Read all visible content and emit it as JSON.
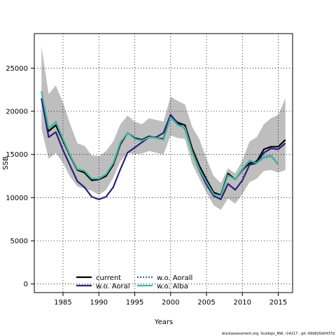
{
  "chart_data": {
    "type": "line",
    "xlabel": "Years",
    "ylabel": "SSB",
    "xlim": [
      1981,
      2017
    ],
    "ylim": [
      -1000,
      29000
    ],
    "x_ticks": [
      1985,
      1990,
      1995,
      2000,
      2005,
      2010,
      2015
    ],
    "y_ticks": [
      0,
      5000,
      10000,
      15000,
      20000,
      25000
    ],
    "grid": true,
    "legend_position": "bottom-left",
    "x": [
      1982,
      1983,
      1984,
      1985,
      1986,
      1987,
      1988,
      1989,
      1990,
      1991,
      1992,
      1993,
      1994,
      1995,
      1996,
      1997,
      1998,
      1999,
      2000,
      2001,
      2002,
      2003,
      2004,
      2005,
      2006,
      2007,
      2008,
      2009,
      2010,
      2011,
      2012,
      2013,
      2014,
      2015,
      2016
    ],
    "confidence_band": {
      "color": "#bebebe",
      "upper": [
        27500,
        22000,
        23000,
        21000,
        18500,
        16300,
        16000,
        14900,
        14800,
        15400,
        16500,
        18500,
        19500,
        18800,
        18500,
        19200,
        19000,
        18800,
        21700,
        21200,
        20800,
        18200,
        16800,
        14500,
        12500,
        11700,
        13400,
        12800,
        14300,
        16500,
        17000,
        18500,
        19200,
        19600,
        21500
      ],
      "lower": [
        18000,
        14500,
        15200,
        14000,
        12400,
        11300,
        11000,
        10800,
        10300,
        10900,
        12300,
        14200,
        15200,
        15000,
        15100,
        15400,
        15200,
        15000,
        17200,
        16900,
        16800,
        13900,
        12200,
        10600,
        9100,
        8600,
        9900,
        9300,
        10400,
        11800,
        12200,
        13100,
        13200,
        12900,
        13200
      ]
    },
    "series": [
      {
        "name": "current",
        "color": "#000000",
        "style": "solid",
        "width": 2.2,
        "values": [
          21500,
          17700,
          18400,
          16600,
          14800,
          13200,
          12900,
          12000,
          12100,
          12500,
          13800,
          16200,
          17500,
          16900,
          16700,
          17100,
          16900,
          16800,
          19400,
          18700,
          18400,
          15700,
          13700,
          12100,
          10600,
          10300,
          12800,
          12100,
          13200,
          14000,
          14200,
          15600,
          15900,
          15900,
          16700
        ]
      },
      {
        "name": "w.o. Aoral",
        "color": "#2e1e7c",
        "style": "solid",
        "width": 2.2,
        "values": [
          21500,
          17000,
          17600,
          15500,
          13700,
          11900,
          11200,
          10100,
          9800,
          10100,
          11200,
          13300,
          15200,
          15800,
          16400,
          17000,
          17000,
          17500,
          19600,
          18600,
          18000,
          15300,
          13200,
          11500,
          10200,
          9800,
          11600,
          10900,
          12000,
          13800,
          14000,
          15200,
          15700,
          15600,
          16300
        ]
      },
      {
        "name": "w.o. Aorall",
        "color": "#2a6c9e",
        "style": "dotted",
        "width": 2.0,
        "values": [
          22300,
          18000,
          18800,
          16800,
          14900,
          13300,
          13100,
          12200,
          12200,
          12700,
          14000,
          16400,
          17500,
          16800,
          16600,
          17000,
          16900,
          16700,
          19300,
          18400,
          18100,
          15300,
          13300,
          11800,
          10400,
          10200,
          12600,
          12100,
          13300,
          14300,
          14000,
          14600,
          14800,
          13800,
          null
        ]
      },
      {
        "name": "w.o. Alba",
        "color": "#3fb9a0",
        "style": "solid",
        "width": 2.2,
        "values": [
          22300,
          18000,
          18800,
          16800,
          14900,
          13300,
          13100,
          12200,
          12200,
          12700,
          14000,
          16400,
          17500,
          16800,
          16600,
          17000,
          16900,
          16700,
          19300,
          18400,
          18100,
          15300,
          13300,
          11800,
          10400,
          10200,
          12600,
          12100,
          13300,
          14300,
          14000,
          14700,
          14900,
          13900,
          null
        ]
      }
    ],
    "legend": {
      "col1": [
        "current",
        "w.o. Aoral"
      ],
      "col2": [
        "w.o. Aorall",
        "w.o. Alba"
      ]
    }
  },
  "footer_text": "stockassessment.org, Scallops_NW, r14217 , git: 69d926d0437d"
}
